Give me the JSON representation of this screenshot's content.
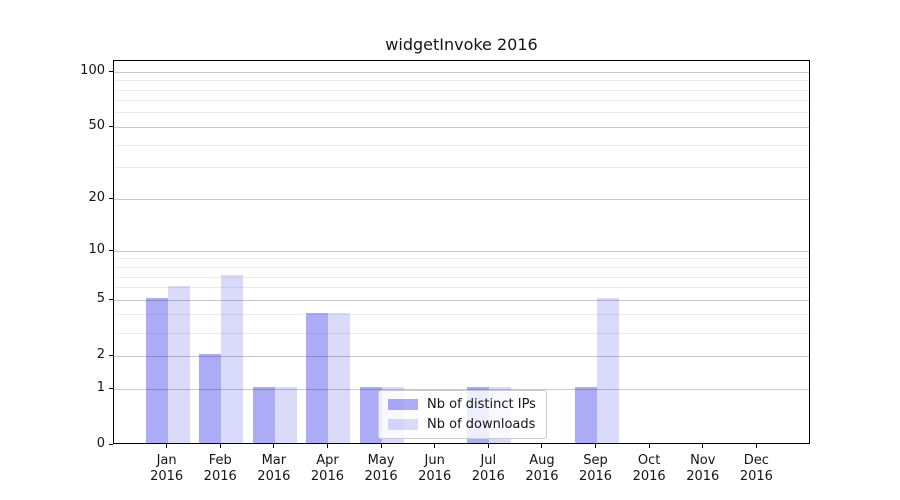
{
  "chart_data": {
    "type": "bar",
    "title": "widgetInvoke 2016",
    "categories": [
      "Jan",
      "Feb",
      "Mar",
      "Apr",
      "May",
      "Jun",
      "Jul",
      "Aug",
      "Sep",
      "Oct",
      "Nov",
      "Dec"
    ],
    "category_sublabel": "2016",
    "series": [
      {
        "name": "Nb of distinct IPs",
        "color": "rgba(10,10,230,0.34)",
        "values": [
          5,
          2,
          1,
          4,
          1,
          0,
          1,
          0,
          1,
          0,
          0,
          0
        ]
      },
      {
        "name": "Nb of downloads",
        "color": "rgba(10,10,230,0.15)",
        "values": [
          6,
          7,
          1,
          4,
          1,
          0,
          1,
          0,
          5,
          0,
          0,
          0
        ]
      }
    ],
    "yscale": "log1p",
    "ylim": [
      0,
      115
    ],
    "yticks_major": [
      0,
      1,
      2,
      5,
      10,
      20,
      50,
      100
    ],
    "yticks_minor": [
      3,
      4,
      6,
      7,
      8,
      9,
      30,
      40,
      60,
      70,
      80,
      90
    ],
    "grid": "horizontal",
    "legend_position": "lower center",
    "colors": {
      "major_grid": "#c9c9c9",
      "minor_grid": "#ebebeb",
      "spine": "#000000",
      "text": "#151515",
      "background": "#ffffff"
    }
  }
}
